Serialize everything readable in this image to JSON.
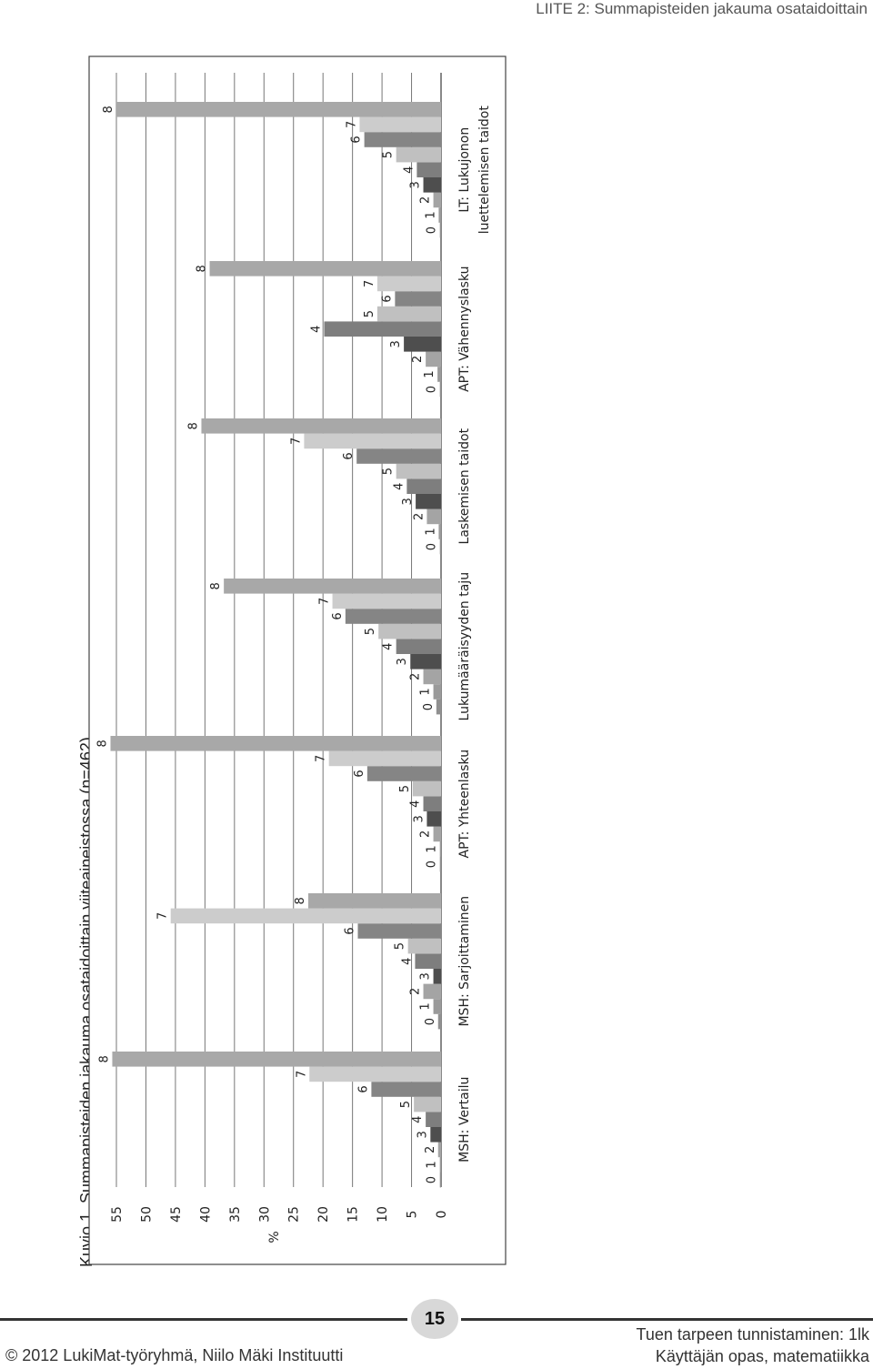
{
  "header": {
    "label": "LIITE 2: Summapisteiden jakauma osataidoittain"
  },
  "caption": "Kuvio 1. Summapisteiden jakauma osataidoittain viiteaineistossa (n=462).",
  "footer": {
    "page_number": "15",
    "copyright": "© 2012 LukiMat-työryhmä, Niilo Mäki Instituutti",
    "line1": "Tuen tarpeen tunnistaminen: 1lk",
    "line2": "Käyttäjän opas, matematiikka"
  },
  "chart_data": {
    "type": "bar",
    "ylabel": "%",
    "ylim": [
      0,
      55
    ],
    "yticks": [
      0,
      5,
      10,
      15,
      20,
      25,
      30,
      35,
      40,
      45,
      50,
      55
    ],
    "grid": true,
    "orientation": "rotated-90-ccw",
    "score_colors": [
      "#909090",
      "#9a9a9a",
      "#a4a4a4",
      "#4e4e4e",
      "#7e7e7e",
      "#c0c0c0",
      "#858585",
      "#cccccc",
      "#a8a8a8"
    ],
    "groups": [
      {
        "name": "MSH: Vertailu",
        "bars": [
          {
            "score": "0",
            "value": 0.2
          },
          {
            "score": "1",
            "value": 0.2
          },
          {
            "score": "2",
            "value": 0.5
          },
          {
            "score": "3",
            "value": 1.8
          },
          {
            "score": "4",
            "value": 2.6
          },
          {
            "score": "5",
            "value": 4.6
          },
          {
            "score": "6",
            "value": 11.8
          },
          {
            "score": "7",
            "value": 22.3
          },
          {
            "score": "8",
            "value": 55.7
          }
        ]
      },
      {
        "name": "MSH: Sarjoittaminen",
        "bars": [
          {
            "score": "0",
            "value": 0.5
          },
          {
            "score": "1",
            "value": 1.3
          },
          {
            "score": "2",
            "value": 3.0
          },
          {
            "score": "3",
            "value": 1.3
          },
          {
            "score": "4",
            "value": 4.4
          },
          {
            "score": "5",
            "value": 5.6
          },
          {
            "score": "6",
            "value": 14.1
          },
          {
            "score": "7",
            "value": 45.8
          },
          {
            "score": "8",
            "value": 22.5
          }
        ]
      },
      {
        "name": "APT: Yhteenlasku",
        "bars": [
          {
            "score": "0",
            "value": 0.2
          },
          {
            "score": "1",
            "value": 0.2
          },
          {
            "score": "2",
            "value": 1.3
          },
          {
            "score": "3",
            "value": 2.4
          },
          {
            "score": "4",
            "value": 3.0
          },
          {
            "score": "5",
            "value": 4.8
          },
          {
            "score": "6",
            "value": 12.5
          },
          {
            "score": "7",
            "value": 19.0
          },
          {
            "score": "8",
            "value": 56.0
          }
        ]
      },
      {
        "name": "Lukumääräisyyden taju",
        "bars": [
          {
            "score": "0",
            "value": 0.8
          },
          {
            "score": "1",
            "value": 1.3
          },
          {
            "score": "2",
            "value": 3.0
          },
          {
            "score": "3",
            "value": 5.2
          },
          {
            "score": "4",
            "value": 7.6
          },
          {
            "score": "5",
            "value": 10.6
          },
          {
            "score": "6",
            "value": 16.2
          },
          {
            "score": "7",
            "value": 18.4
          },
          {
            "score": "8",
            "value": 36.8
          }
        ]
      },
      {
        "name": "Laskemisen taidot",
        "bars": [
          {
            "score": "0",
            "value": 0.2
          },
          {
            "score": "1",
            "value": 0.4
          },
          {
            "score": "2",
            "value": 2.4
          },
          {
            "score": "3",
            "value": 4.3
          },
          {
            "score": "4",
            "value": 5.8
          },
          {
            "score": "5",
            "value": 7.6
          },
          {
            "score": "6",
            "value": 14.3
          },
          {
            "score": "7",
            "value": 23.2
          },
          {
            "score": "8",
            "value": 40.6
          }
        ]
      },
      {
        "name": "APT: Vähennyslasku",
        "bars": [
          {
            "score": "0",
            "value": 0.2
          },
          {
            "score": "1",
            "value": 0.6
          },
          {
            "score": "2",
            "value": 2.6
          },
          {
            "score": "3",
            "value": 6.3
          },
          {
            "score": "4",
            "value": 19.8
          },
          {
            "score": "5",
            "value": 10.8
          },
          {
            "score": "6",
            "value": 7.8
          },
          {
            "score": "7",
            "value": 10.8
          },
          {
            "score": "8",
            "value": 39.2
          }
        ]
      },
      {
        "name": "LT: Lukujonon luettelemisen taidot",
        "bars": [
          {
            "score": "0",
            "value": 0.2
          },
          {
            "score": "1",
            "value": 0.4
          },
          {
            "score": "2",
            "value": 1.3
          },
          {
            "score": "3",
            "value": 3.0
          },
          {
            "score": "4",
            "value": 4.1
          },
          {
            "score": "5",
            "value": 7.6
          },
          {
            "score": "6",
            "value": 13.0
          },
          {
            "score": "7",
            "value": 13.8
          },
          {
            "score": "8",
            "value": 55.0
          }
        ]
      }
    ]
  }
}
